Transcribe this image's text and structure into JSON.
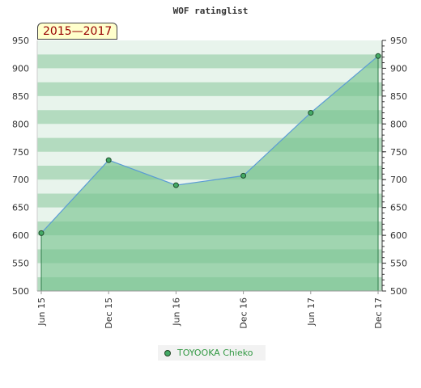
{
  "chart_data": {
    "type": "area",
    "title": "WOF ratinglist",
    "period_label": "2015—2017",
    "categories": [
      "Jun 15",
      "Dec 15",
      "Jun 16",
      "Dec 16",
      "Jun 17",
      "Dec 17"
    ],
    "series": [
      {
        "name": "TOYOOKA Chieko",
        "values": [
          604,
          735,
          690,
          707,
          820,
          922
        ]
      }
    ],
    "ylim": [
      500,
      950
    ],
    "yticks": [
      500,
      550,
      600,
      650,
      700,
      750,
      800,
      850,
      900,
      950
    ],
    "y_axis_both_sides": true,
    "legend_position": "bottom-center",
    "colors": {
      "fill": "#79c491",
      "line": "#5a9bd5",
      "point": "#44aa66",
      "band_dark": "#b3dbbf",
      "band_light": "#e8f4ec"
    }
  }
}
